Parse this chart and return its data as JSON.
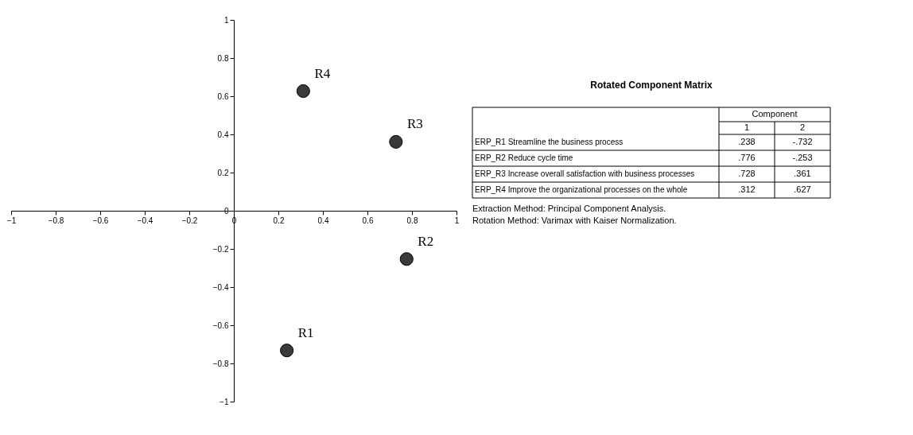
{
  "chart_data": {
    "type": "scatter",
    "x": [
      0.238,
      0.776,
      0.728,
      0.312
    ],
    "values": [
      -0.732,
      -0.253,
      0.361,
      0.627
    ],
    "color": "#3a3a3a",
    "xlim": [
      -1,
      1
    ],
    "ylim": [
      -1,
      1
    ],
    "xticks": [
      -1,
      -0.8,
      -0.6,
      -0.4,
      -0.2,
      0,
      0.2,
      0.4,
      0.6,
      0.8,
      1
    ],
    "yticks": [
      -1,
      -0.8,
      -0.6,
      -0.4,
      -0.2,
      0,
      0.2,
      0.4,
      0.6,
      0.8,
      1
    ],
    "grid": false,
    "marker": "circle",
    "annotations": [
      {
        "text": "R1",
        "x": 0.238,
        "y": -0.732
      },
      {
        "text": "R2",
        "x": 0.776,
        "y": -0.253
      },
      {
        "text": "R3",
        "x": 0.728,
        "y": 0.361
      },
      {
        "text": "R4",
        "x": 0.312,
        "y": 0.627
      },
      "Rotated Component Matrix",
      "Component",
      "1",
      "2",
      "ERP_R1  Streamline the business process",
      "ERP_R2  Reduce cycle time",
      "ERP_R3  Increase overall satisfaction with business processes",
      "ERP_R4  Improve the organizational processes on the whole",
      ".238",
      "-.732",
      ".776",
      "-.253",
      ".728",
      ".361",
      ".312",
      ".627",
      "Extraction Method: Principal Component Analysis.",
      "Rotation Method: Varimax with Kaiser Normalization."
    ]
  }
}
